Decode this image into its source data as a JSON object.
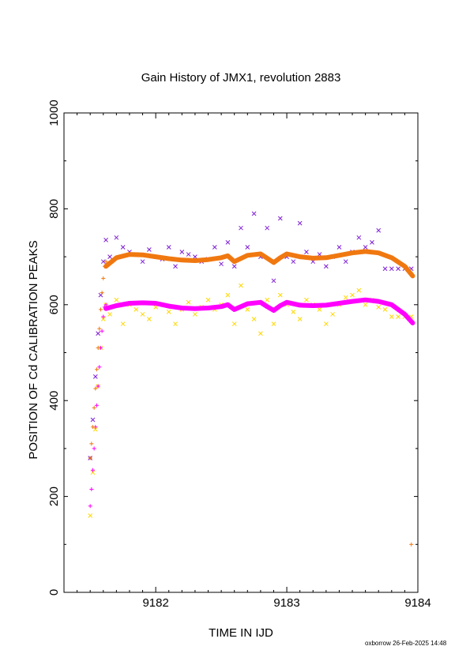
{
  "footer": "oxborrow 26-Feb-2025 14:48",
  "colors": {
    "series_purple": "#7f1fd6",
    "series_orange": "#f07810",
    "series_magenta": "#ff00ff",
    "series_yellow": "#f0f000"
  },
  "chart_data": {
    "type": "scatter",
    "title": "Gain History of JMX1, revolution 2883",
    "xlabel": "TIME IN IJD",
    "ylabel": "POSITION OF Cd CALIBRATION PEAKS",
    "xlim": [
      9181.3,
      9184.0
    ],
    "ylim": [
      0,
      1000
    ],
    "x_ticks": [
      9182,
      9183,
      9184
    ],
    "x_tick_labels": [
      "9182",
      "9183",
      "9184"
    ],
    "y_ticks": [
      0,
      200,
      400,
      600,
      800,
      1000
    ],
    "y_tick_labels": [
      "0",
      "200",
      "400",
      "600",
      "800",
      "1000"
    ],
    "grid": false,
    "legend": "none",
    "series": [
      {
        "color": "#7f1fd6",
        "marker": "x",
        "x": [
          9181.5,
          9181.52,
          9181.54,
          9181.56,
          9181.58,
          9181.6,
          9181.62,
          9181.65,
          9181.7,
          9181.75,
          9181.8,
          9181.85,
          9181.9,
          9181.95,
          9182.0,
          9182.05,
          9182.1,
          9182.15,
          9182.2,
          9182.25,
          9182.3,
          9182.35,
          9182.4,
          9182.45,
          9182.5,
          9182.55,
          9182.6,
          9182.65,
          9182.7,
          9182.75,
          9182.8,
          9182.85,
          9182.9,
          9182.95,
          9183.0,
          9183.05,
          9183.1,
          9183.15,
          9183.2,
          9183.25,
          9183.3,
          9183.35,
          9183.4,
          9183.45,
          9183.5,
          9183.55,
          9183.6,
          9183.65,
          9183.7,
          9183.75,
          9183.8,
          9183.85,
          9183.9,
          9183.95
        ],
        "y": [
          280,
          360,
          450,
          540,
          620,
          690,
          735,
          700,
          740,
          720,
          710,
          705,
          690,
          715,
          700,
          695,
          720,
          680,
          710,
          705,
          700,
          690,
          695,
          720,
          685,
          730,
          680,
          760,
          720,
          790,
          700,
          760,
          650,
          780,
          700,
          690,
          770,
          710,
          690,
          705,
          680,
          700,
          720,
          690,
          710,
          740,
          720,
          730,
          755,
          675,
          675,
          675,
          675,
          675
        ]
      },
      {
        "color": "#ffd700",
        "marker": "x",
        "x": [
          9181.5,
          9181.52,
          9181.54,
          9181.56,
          9181.58,
          9181.6,
          9181.62,
          9181.65,
          9181.7,
          9181.75,
          9181.8,
          9181.85,
          9181.9,
          9181.95,
          9182.0,
          9182.05,
          9182.1,
          9182.15,
          9182.2,
          9182.25,
          9182.3,
          9182.35,
          9182.4,
          9182.45,
          9182.5,
          9182.55,
          9182.6,
          9182.65,
          9182.7,
          9182.75,
          9182.8,
          9182.85,
          9182.9,
          9182.95,
          9183.0,
          9183.05,
          9183.1,
          9183.15,
          9183.2,
          9183.25,
          9183.3,
          9183.35,
          9183.4,
          9183.45,
          9183.5,
          9183.55,
          9183.6,
          9183.65,
          9183.7,
          9183.75,
          9183.8,
          9183.85,
          9183.9,
          9183.95
        ],
        "y": [
          160,
          250,
          340,
          430,
          510,
          570,
          600,
          580,
          610,
          560,
          600,
          590,
          580,
          570,
          595,
          600,
          585,
          560,
          590,
          605,
          580,
          595,
          610,
          590,
          600,
          620,
          560,
          640,
          590,
          570,
          540,
          610,
          560,
          620,
          600,
          585,
          570,
          610,
          600,
          590,
          560,
          580,
          600,
          615,
          620,
          630,
          600,
          610,
          595,
          590,
          575,
          575,
          575,
          575
        ]
      },
      {
        "color": "#ff00ff",
        "marker": "+",
        "x": [
          9181.5,
          9181.51,
          9181.52,
          9181.53,
          9181.54,
          9181.55,
          9181.56,
          9181.57,
          9181.58,
          9181.59,
          9181.6,
          9181.61,
          9181.62
        ],
        "y": [
          180,
          215,
          255,
          300,
          345,
          390,
          430,
          470,
          510,
          545,
          575,
          595,
          600
        ]
      },
      {
        "color": "#f07810",
        "marker": "+",
        "x": [
          9181.5,
          9181.51,
          9181.52,
          9181.53,
          9181.54,
          9181.55,
          9181.56,
          9181.57,
          9181.58,
          9181.59,
          9181.6,
          9181.61,
          9181.62,
          9183.95
        ],
        "y": [
          280,
          310,
          345,
          385,
          425,
          465,
          510,
          550,
          590,
          625,
          655,
          680,
          690,
          100
        ]
      },
      {
        "color": "#ff00ff",
        "marker": "line",
        "x": [
          9181.62,
          9181.7,
          9181.8,
          9181.9,
          9182.0,
          9182.1,
          9182.2,
          9182.3,
          9182.4,
          9182.5,
          9182.55,
          9182.6,
          9182.7,
          9182.8,
          9182.85,
          9182.9,
          9182.95,
          9183.0,
          9183.1,
          9183.2,
          9183.3,
          9183.4,
          9183.5,
          9183.6,
          9183.7,
          9183.8,
          9183.9,
          9183.96
        ],
        "y": [
          592,
          598,
          603,
          604,
          603,
          597,
          593,
          592,
          593,
          596,
          600,
          590,
          602,
          605,
          596,
          588,
          598,
          605,
          599,
          598,
          599,
          603,
          607,
          610,
          607,
          600,
          580,
          562
        ]
      },
      {
        "color": "#f07810",
        "marker": "line",
        "x": [
          9181.62,
          9181.7,
          9181.8,
          9181.9,
          9182.0,
          9182.1,
          9182.2,
          9182.3,
          9182.4,
          9182.5,
          9182.55,
          9182.6,
          9182.7,
          9182.8,
          9182.85,
          9182.9,
          9182.95,
          9183.0,
          9183.1,
          9183.2,
          9183.3,
          9183.4,
          9183.5,
          9183.6,
          9183.7,
          9183.8,
          9183.9,
          9183.96
        ],
        "y": [
          680,
          698,
          705,
          704,
          700,
          696,
          693,
          692,
          694,
          698,
          702,
          690,
          703,
          706,
          697,
          688,
          698,
          706,
          700,
          697,
          698,
          703,
          708,
          711,
          708,
          698,
          680,
          660
        ]
      }
    ]
  }
}
